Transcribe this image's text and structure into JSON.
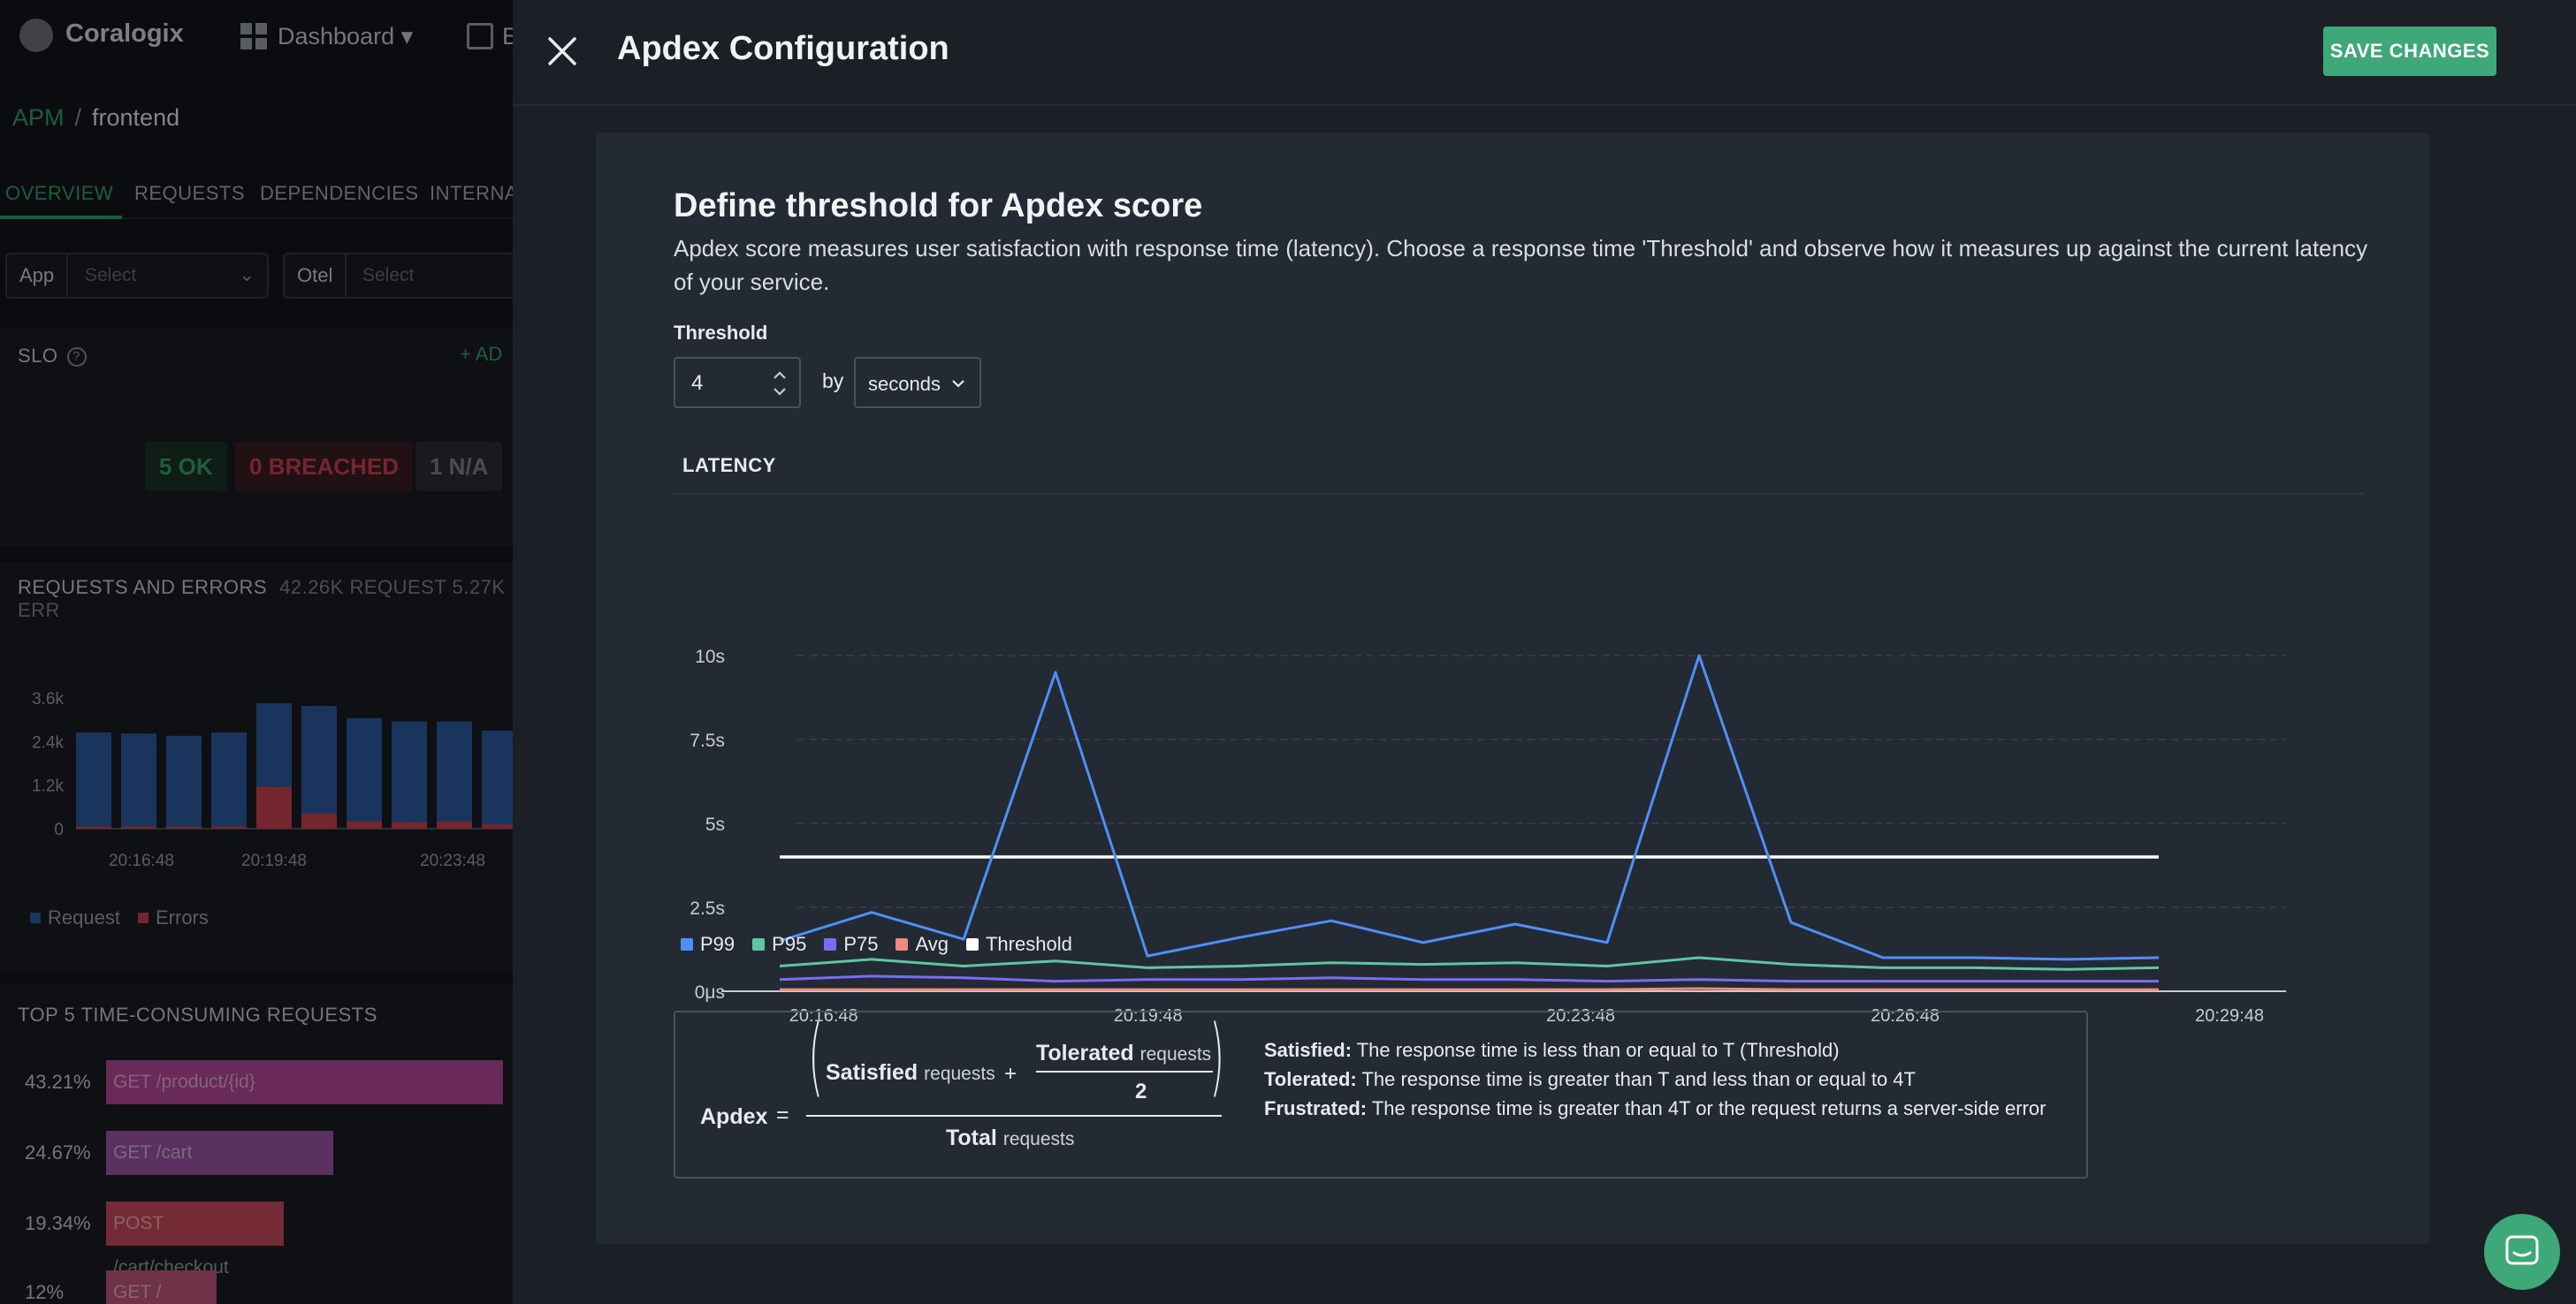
{
  "background": {
    "app_name": "Coralogix",
    "nav": {
      "dashboard_label": "Dashboard",
      "explore_label": "E"
    },
    "breadcrumb": {
      "root": "APM",
      "separator": "/",
      "current": "frontend"
    },
    "tabs": [
      "OVERVIEW",
      "REQUESTS",
      "DEPENDENCIES",
      "INTERNA"
    ],
    "filters": [
      {
        "label": "App",
        "placeholder": "Select"
      },
      {
        "label": "Otel",
        "placeholder": "Select"
      }
    ],
    "slo": {
      "title": "SLO",
      "add_label": "+ AD",
      "ok": "5 OK",
      "breached": "0 BREACHED",
      "na": "1 N/A"
    },
    "requests_errors": {
      "title": "REQUESTS AND ERRORS",
      "summary": "42.26K REQUEST 5.27K ERR",
      "y_ticks": [
        "3.6k",
        "2.4k",
        "1.2k",
        "0"
      ],
      "x_ticks": [
        "20:16:48",
        "20:19:48",
        "20:23:48"
      ],
      "legend": [
        {
          "label": "Request",
          "color": "#2c5aa0"
        },
        {
          "label": "Errors",
          "color": "#c8414e"
        }
      ],
      "requests": [
        2650,
        2620,
        2560,
        2650,
        3450,
        3380,
        3040,
        2950,
        2950,
        2700
      ],
      "errors": [
        60,
        60,
        55,
        60,
        1150,
        420,
        200,
        180,
        200,
        120
      ],
      "y_max": 3600
    },
    "top5": {
      "title": "TOP 5 TIME-CONSUMING REQUESTS",
      "rows": [
        {
          "pct": "43.21%",
          "name": "GET /product/{id}",
          "color": "#b5489a",
          "fraction": 0.4321
        },
        {
          "pct": "24.67%",
          "name": "GET /cart",
          "color": "#9b55a8",
          "fraction": 0.2467
        },
        {
          "pct": "19.34%",
          "name": "POST /cart/checkout",
          "color": "#c84a5c",
          "fraction": 0.1934
        },
        {
          "pct": "12%",
          "name": "GET /",
          "color": "#c0567a",
          "fraction": 0.12
        }
      ]
    }
  },
  "drawer": {
    "title": "Apdex Configuration",
    "save_label": "SAVE CHANGES",
    "heading": "Define threshold for Apdex score",
    "description": "Apdex score measures user satisfaction with response time (latency). Choose a response time 'Threshold' and observe how it measures up against the current latency of your service.",
    "threshold_label": "Threshold",
    "threshold_value": "4",
    "by_label": "by",
    "unit": "seconds",
    "latency_title": "LATENCY",
    "formula": {
      "apdex": "Apdex",
      "equals": "=",
      "satisfied": "Satisfied",
      "requests_word": "requests",
      "plus": "+",
      "tolerated": "Tolerated",
      "divisor": "2",
      "total": "Total",
      "defs": [
        {
          "term": "Satisfied:",
          "text": " The response time is less than or equal to T (Threshold)"
        },
        {
          "term": "Tolerated:",
          "text": " The response time is greater than T and less than or equal to 4T"
        },
        {
          "term": "Frustrated:",
          "text": " The response time is greater than 4T or the request returns a server-side error"
        }
      ]
    }
  },
  "chart_data": {
    "type": "line",
    "title": "LATENCY",
    "y_ticks": [
      "0μs",
      "2.5s",
      "5s",
      "7.5s",
      "10s"
    ],
    "ylim": [
      0,
      10
    ],
    "x_ticks": [
      "20:16:48",
      "20:19:48",
      "20:23:48",
      "20:26:48",
      "20:29:48"
    ],
    "grid": true,
    "legend_placement": "bottom-left",
    "series": [
      {
        "name": "P99",
        "color": "#4f8ff7",
        "values": [
          1.5,
          2.35,
          1.55,
          9.5,
          1.05,
          1.6,
          2.1,
          1.45,
          2.0,
          1.45,
          10.0,
          2.05,
          1.0,
          1.0,
          0.95,
          1.0
        ]
      },
      {
        "name": "P95",
        "color": "#5fc6a4",
        "values": [
          0.75,
          0.95,
          0.75,
          0.9,
          0.7,
          0.75,
          0.85,
          0.8,
          0.85,
          0.75,
          1.0,
          0.8,
          0.7,
          0.7,
          0.65,
          0.7
        ]
      },
      {
        "name": "P75",
        "color": "#7b6cf6",
        "values": [
          0.35,
          0.45,
          0.4,
          0.3,
          0.35,
          0.35,
          0.4,
          0.35,
          0.35,
          0.3,
          0.35,
          0.3,
          0.3,
          0.3,
          0.3,
          0.3
        ]
      },
      {
        "name": "Avg",
        "color": "#f08a7e",
        "values": [
          0.05,
          0.05,
          0.05,
          0.05,
          0.05,
          0.05,
          0.05,
          0.05,
          0.05,
          0.05,
          0.08,
          0.05,
          0.05,
          0.05,
          0.05,
          0.05
        ]
      },
      {
        "name": "Threshold",
        "color": "#ffffff",
        "values": [
          4,
          4,
          4,
          4,
          4,
          4,
          4,
          4,
          4,
          4,
          4,
          4,
          4,
          4,
          4,
          4
        ]
      }
    ]
  }
}
